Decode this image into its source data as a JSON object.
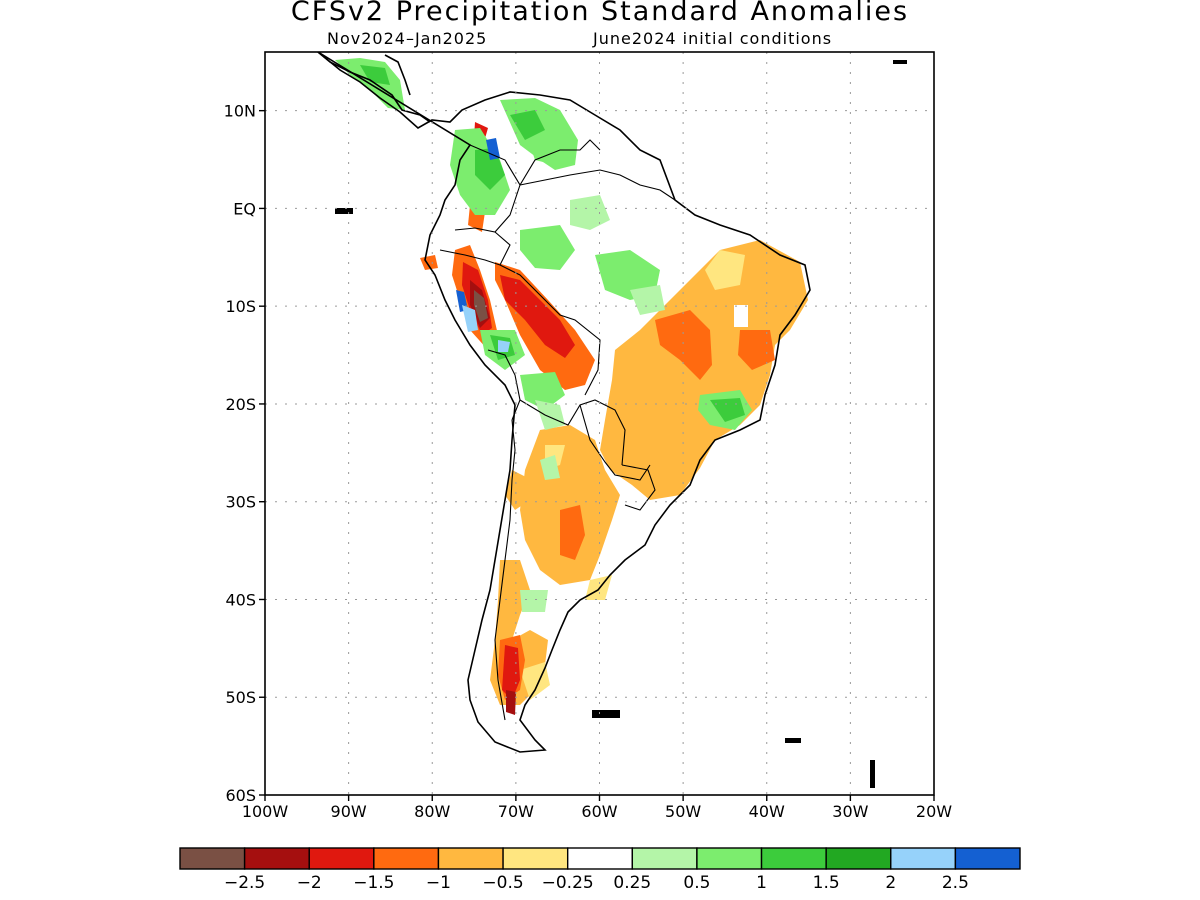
{
  "title": "CFSv2 Precipitation Standard Anomalies",
  "subtitle_period": "Nov2024–Jan2025",
  "subtitle_init": "June2024 initial conditions",
  "map": {
    "lat_labels": [
      "10N",
      "EQ",
      "10S",
      "20S",
      "30S",
      "40S",
      "50S",
      "60S"
    ],
    "lon_labels": [
      "100W",
      "90W",
      "80W",
      "70W",
      "60W",
      "50W",
      "40W",
      "30W",
      "20W"
    ],
    "extent": {
      "lon_min": -100,
      "lon_max": -20,
      "lat_min": -60,
      "lat_max": 16
    }
  },
  "colorbar": {
    "colors": [
      "#7a5044",
      "#a50f0f",
      "#e0180f",
      "#ff6a10",
      "#ffb840",
      "#ffe680",
      "#ffffff",
      "#b4f5a8",
      "#7ced6e",
      "#3ccc3c",
      "#22a822",
      "#96d2fa",
      "#1460d2"
    ],
    "labels": [
      "−2.5",
      "−2",
      "−1.5",
      "−1",
      "−0.5",
      "−0.25",
      "0.25",
      "0.5",
      "1",
      "1.5",
      "2",
      "2.5"
    ]
  }
}
